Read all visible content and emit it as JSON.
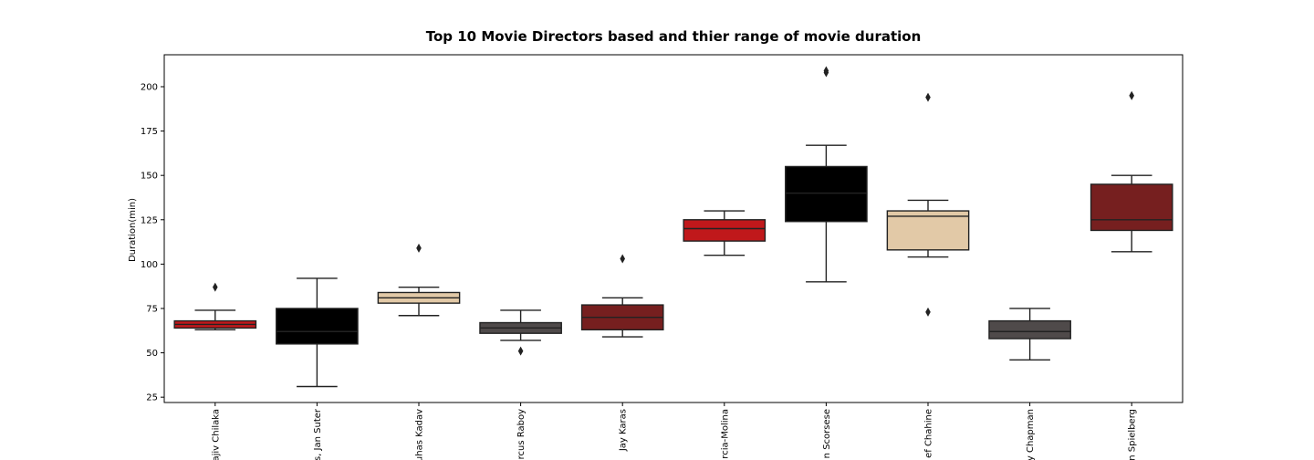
{
  "chart_data": {
    "type": "box",
    "title": "Top 10 Movie Directors based and thier range of movie duration",
    "ylabel": "Duration(min)",
    "categories": [
      "ajiv Chilaka",
      "s, Jan Suter",
      "uhas Kadav",
      "rcus Raboy",
      "Jay Karas",
      "rcia-Molina",
      "n Scorsese",
      "ef Chahine",
      "y Chapman",
      "n Spielberg"
    ],
    "ylim": [
      22,
      218
    ],
    "yticks": [
      25,
      50,
      75,
      100,
      125,
      150,
      175,
      200
    ],
    "boxes": [
      {
        "min": 63,
        "q1": 64,
        "median": 66,
        "q3": 68,
        "max": 74,
        "outliers": [
          87
        ],
        "color": "#c0181b"
      },
      {
        "min": 31,
        "q1": 55,
        "median": 62,
        "q3": 75,
        "max": 92,
        "outliers": [],
        "color": "#000000"
      },
      {
        "min": 71,
        "q1": 78,
        "median": 81,
        "q3": 84,
        "max": 87,
        "outliers": [
          109
        ],
        "color": "#e2c9a7"
      },
      {
        "min": 57,
        "q1": 61,
        "median": 64,
        "q3": 67,
        "max": 74,
        "outliers": [
          51
        ],
        "color": "#4f4a4a"
      },
      {
        "min": 59,
        "q1": 63,
        "median": 70,
        "q3": 77,
        "max": 81,
        "outliers": [
          103
        ],
        "color": "#761f1f"
      },
      {
        "min": 105,
        "q1": 113,
        "median": 120,
        "q3": 125,
        "max": 130,
        "outliers": [],
        "color": "#c0181b"
      },
      {
        "min": 90,
        "q1": 124,
        "median": 140,
        "q3": 155,
        "max": 167,
        "outliers": [
          208,
          209
        ],
        "color": "#000000"
      },
      {
        "min": 104,
        "q1": 108,
        "median": 127,
        "q3": 130,
        "max": 136,
        "outliers": [
          194,
          73
        ],
        "color": "#e2c9a7"
      },
      {
        "min": 46,
        "q1": 58,
        "median": 62,
        "q3": 68,
        "max": 75,
        "outliers": [],
        "color": "#4f4a4a"
      },
      {
        "min": 107,
        "q1": 119,
        "median": 125,
        "q3": 145,
        "max": 150,
        "outliers": [
          195
        ],
        "color": "#761f1f"
      }
    ]
  }
}
